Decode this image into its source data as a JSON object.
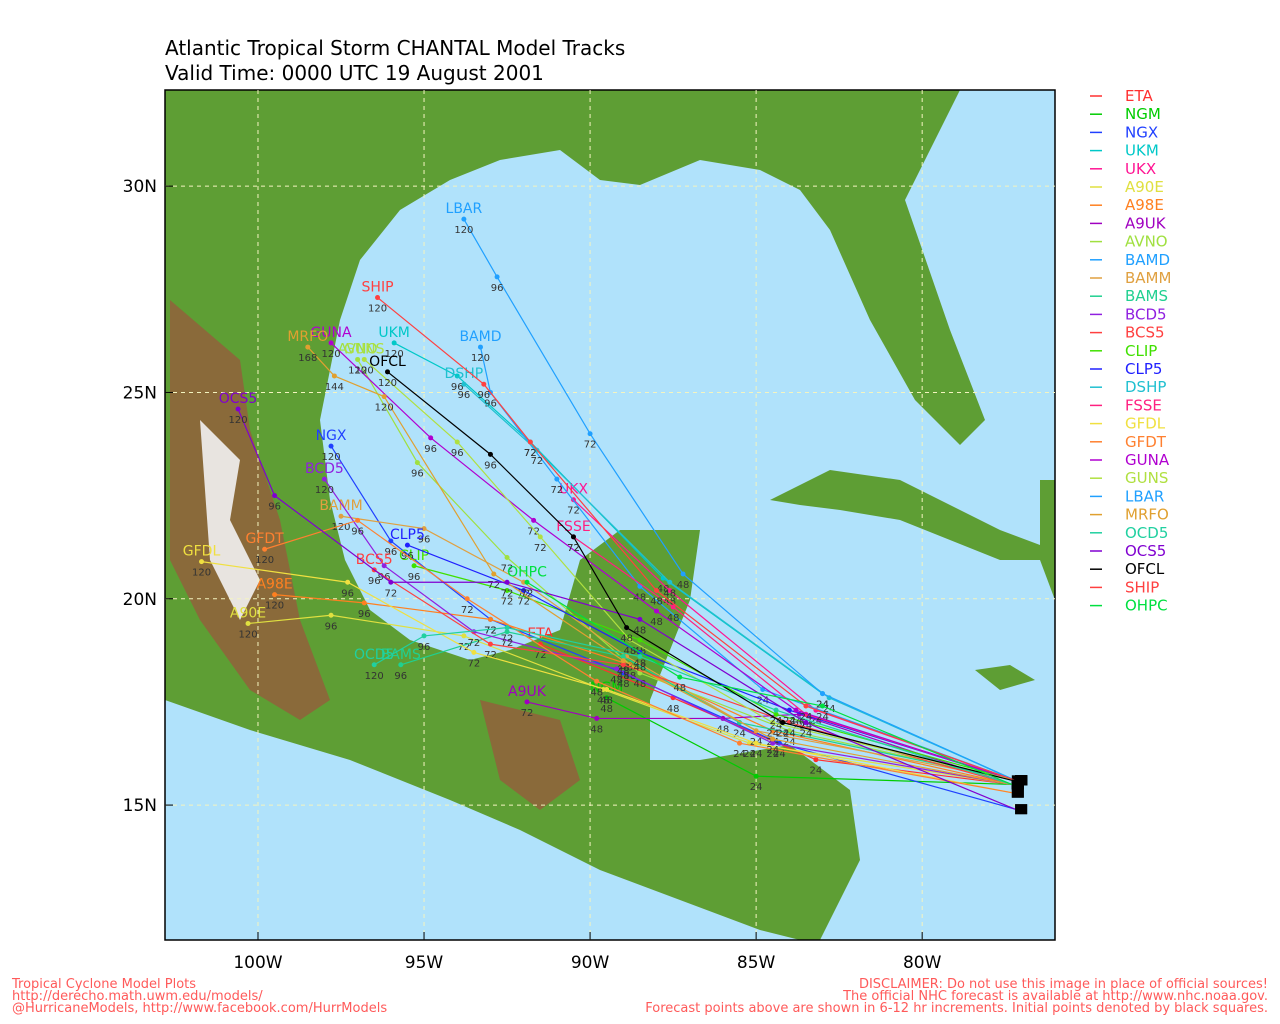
{
  "chart_data": {
    "type": "track",
    "title": "Atlantic Tropical Storm CHANTAL Model Tracks",
    "subtitle": "Valid Time: 0000 UTC 19 August 2001",
    "xlim": [
      -102.8,
      -76.0
    ],
    "ylim": [
      11.73,
      32.33
    ],
    "xticks": [
      {
        "value": -100,
        "label": "100W"
      },
      {
        "value": -95,
        "label": "95W"
      },
      {
        "value": -90,
        "label": "90W"
      },
      {
        "value": -85,
        "label": "85W"
      },
      {
        "value": -80,
        "label": "80W"
      }
    ],
    "yticks": [
      {
        "value": 15,
        "label": "15N"
      },
      {
        "value": 20,
        "label": "20N"
      },
      {
        "value": 25,
        "label": "25N"
      },
      {
        "value": 30,
        "label": "30N"
      }
    ],
    "grid": true,
    "series": [
      {
        "name": "ETA",
        "color": "#ff3030",
        "start_lon": -77.3,
        "start_lat": 15.5,
        "lon": [
          -83.2,
          -87.5,
          -91.5
        ],
        "lat": [
          16.1,
          17.6,
          18.9
        ],
        "hours": [
          24,
          48,
          72
        ]
      },
      {
        "name": "NGM",
        "color": "#00cc00",
        "start_lon": -77.3,
        "start_lat": 15.5,
        "lon": [
          -85.0,
          -89.5
        ],
        "lat": [
          15.7,
          17.6
        ],
        "hours": [
          24,
          48
        ]
      },
      {
        "name": "NGX",
        "color": "#2040ff",
        "start_lon": -77.2,
        "start_lat": 14.9,
        "lon": [
          -84.3,
          -89.0,
          -93.0,
          -96.0,
          -97.8
        ],
        "lat": [
          16.5,
          18.2,
          19.5,
          21.4,
          23.7
        ],
        "hours": [
          24,
          48,
          72,
          96,
          120
        ]
      },
      {
        "name": "UKM",
        "color": "#00c8c8",
        "start_lon": -77.2,
        "start_lat": 15.6,
        "lon": [
          -83.0,
          -87.8,
          -91.8,
          -94.0,
          -95.9
        ],
        "lat": [
          17.7,
          20.5,
          23.8,
          25.4,
          26.2
        ],
        "hours": [
          24,
          48,
          72,
          96,
          120
        ]
      },
      {
        "name": "UKX",
        "color": "#ff1493",
        "start_lon": -77.2,
        "start_lat": 15.6,
        "lon": [
          -83.2,
          -87.6,
          -90.5
        ],
        "lat": [
          17.3,
          20.2,
          22.4
        ],
        "hours": [
          24,
          48,
          72
        ]
      },
      {
        "name": "A90E",
        "color": "#e0e040",
        "start_lon": -77.3,
        "start_lat": 15.5,
        "lon": [
          -85.2,
          -89.6,
          -93.8,
          -97.8,
          -100.3
        ],
        "lat": [
          16.5,
          17.8,
          19.1,
          19.6,
          19.4
        ],
        "hours": [
          24,
          48,
          72,
          96,
          120
        ]
      },
      {
        "name": "A98E",
        "color": "#ff8020",
        "start_lon": -77.3,
        "start_lat": 15.5,
        "lon": [
          -84.5,
          -88.8,
          -93.0,
          -96.8,
          -99.5
        ],
        "lat": [
          16.8,
          18.4,
          19.5,
          19.9,
          20.1
        ],
        "hours": [
          24,
          48,
          72,
          96,
          120
        ]
      },
      {
        "name": "A9UK",
        "color": "#a000c0",
        "start_lon": -77.3,
        "start_lat": 15.5,
        "lon": [
          -83.7,
          -86.0,
          -89.8,
          -91.9
        ],
        "lat": [
          17.2,
          17.1,
          17.1,
          17.5
        ],
        "hours": [
          24,
          48,
          48,
          72
        ]
      },
      {
        "name": "AVNO",
        "color": "#a0e040",
        "start_lon": -77.2,
        "start_lat": 15.6,
        "lon": [
          -84.0,
          -88.5,
          -92.5,
          -95.2,
          -97.0
        ],
        "lat": [
          16.8,
          18.2,
          21.0,
          23.3,
          25.8
        ],
        "hours": [
          24,
          48,
          72,
          96,
          120
        ]
      },
      {
        "name": "BAMD",
        "color": "#20a0ff",
        "start_lon": -77.2,
        "start_lat": 15.6,
        "lon": [
          -84.8,
          -88.5,
          -91.0,
          -93.0,
          -93.3
        ],
        "lat": [
          17.8,
          20.3,
          22.9,
          25.0,
          26.1
        ],
        "hours": [
          24,
          48,
          72,
          96,
          120
        ]
      },
      {
        "name": "BAMM",
        "color": "#e0a040",
        "start_lon": -77.2,
        "start_lat": 15.6,
        "lon": [
          -85.0,
          -88.9,
          -92.0,
          -95.0,
          -97.5
        ],
        "lat": [
          16.8,
          18.6,
          20.4,
          21.7,
          22.0
        ],
        "hours": [
          24,
          48,
          72,
          96,
          120
        ]
      },
      {
        "name": "BAMS",
        "color": "#20d090",
        "start_lon": -77.2,
        "start_lat": 15.6,
        "lon": [
          -85.5,
          -89.0,
          -92.5,
          -95.7
        ],
        "lat": [
          17.0,
          18.6,
          19.2,
          18.4
        ],
        "hours": [
          24,
          48,
          72,
          96
        ]
      },
      {
        "name": "BCD5",
        "color": "#9020e0",
        "start_lon": -77.3,
        "start_lat": 15.5,
        "lon": [
          -84.5,
          -89.2,
          -93.5,
          -96.2,
          -98.0
        ],
        "lat": [
          16.5,
          18.3,
          19.2,
          20.8,
          22.9
        ],
        "hours": [
          24,
          48,
          72,
          96,
          120
        ]
      },
      {
        "name": "BCS5",
        "color": "#ff4040",
        "start_lon": -77.3,
        "start_lat": 15.5,
        "lon": [
          -84.0,
          -89.0,
          -93.0,
          -96.5
        ],
        "lat": [
          17.0,
          18.4,
          18.9,
          20.7
        ],
        "hours": [
          24,
          48,
          72,
          96
        ]
      },
      {
        "name": "CLIP",
        "color": "#40e000",
        "start_lon": -77.2,
        "start_lat": 15.6,
        "lon": [
          -84.4,
          -88.5,
          -92.5,
          -95.3
        ],
        "lat": [
          17.2,
          19.0,
          20.2,
          20.8
        ],
        "hours": [
          24,
          48,
          72,
          96
        ]
      },
      {
        "name": "CLP5",
        "color": "#2020ff",
        "start_lon": -77.2,
        "start_lat": 15.6,
        "lon": [
          -84.0,
          -88.5,
          -92.0,
          -95.5
        ],
        "lat": [
          17.3,
          18.7,
          20.2,
          21.3
        ],
        "hours": [
          24,
          48,
          72,
          96
        ]
      },
      {
        "name": "DSHP",
        "color": "#20c0d0",
        "start_lon": -77.2,
        "start_lat": 15.6,
        "lon": [
          -82.8,
          -87.6,
          -91.6,
          -93.8
        ],
        "lat": [
          17.6,
          20.4,
          23.6,
          25.2
        ],
        "hours": [
          24,
          48,
          72,
          96
        ]
      },
      {
        "name": "FSSE",
        "color": "#ff2080",
        "start_lon": -77.2,
        "start_lat": 15.6,
        "lon": [
          -83.5,
          -87.5,
          -90.5
        ],
        "lat": [
          17.2,
          19.8,
          21.5
        ],
        "hours": [
          24,
          48,
          72
        ]
      },
      {
        "name": "GFDL",
        "color": "#f0e040",
        "start_lon": -77.3,
        "start_lat": 15.3,
        "lon": [
          -85.0,
          -89.5,
          -93.5,
          -97.3,
          -101.7
        ],
        "lat": [
          16.5,
          17.8,
          18.7,
          20.4,
          20.9
        ],
        "hours": [
          24,
          48,
          72,
          96,
          120
        ]
      },
      {
        "name": "GFDT",
        "color": "#ff8030",
        "start_lon": -77.3,
        "start_lat": 15.3,
        "lon": [
          -85.5,
          -89.8,
          -93.7,
          -97.0,
          -99.8
        ],
        "lat": [
          16.5,
          18.0,
          20.0,
          21.9,
          21.2
        ],
        "hours": [
          24,
          48,
          72,
          96,
          120
        ]
      },
      {
        "name": "GUNA",
        "color": "#b000d0",
        "start_lon": -77.2,
        "start_lat": 15.6,
        "lon": [
          -83.8,
          -88.0,
          -91.7,
          -94.8,
          -97.8
        ],
        "lat": [
          17.3,
          19.7,
          21.9,
          23.9,
          26.2
        ],
        "hours": [
          24,
          48,
          72,
          96,
          120
        ]
      },
      {
        "name": "GUNS",
        "color": "#b0e040",
        "start_lon": -77.2,
        "start_lat": 15.6,
        "lon": [
          -84.5,
          -88.8,
          -91.5,
          -94.0,
          -96.8
        ],
        "lat": [
          17.0,
          19.0,
          21.5,
          23.8,
          25.8
        ],
        "hours": [
          24,
          48,
          72,
          96,
          120
        ]
      },
      {
        "name": "LBAR",
        "color": "#20a0ff",
        "start_lon": -77.2,
        "start_lat": 15.6,
        "lon": [
          -83.0,
          -87.2,
          -90.0,
          -92.8,
          -93.8
        ],
        "lat": [
          17.7,
          20.6,
          24.0,
          27.8,
          29.2
        ],
        "hours": [
          24,
          48,
          72,
          96,
          120
        ]
      },
      {
        "name": "MRFO",
        "color": "#e0a030",
        "start_lon": -77.3,
        "start_lat": 15.5,
        "lon": [
          -84.5,
          -89.0,
          -92.9,
          -96.2,
          -97.7,
          -98.5
        ],
        "lat": [
          16.6,
          18.5,
          20.6,
          24.9,
          25.4,
          26.1
        ],
        "hours": [
          24,
          48,
          72,
          120,
          144,
          168
        ]
      },
      {
        "name": "OCD5",
        "color": "#20d0a0",
        "start_lon": -77.3,
        "start_lat": 15.5,
        "lon": [
          -84.4,
          -88.5,
          -92.5,
          -95.0,
          -96.5
        ],
        "lat": [
          17.3,
          18.6,
          19.3,
          19.1,
          18.4
        ],
        "hours": [
          24,
          48,
          72,
          96,
          120
        ]
      },
      {
        "name": "OCS5",
        "color": "#8000d0",
        "start_lon": -77.2,
        "start_lat": 14.9,
        "lon": [
          -83.5,
          -88.5,
          -92.5,
          -96.0,
          -99.5,
          -100.6
        ],
        "lat": [
          17.0,
          19.5,
          20.4,
          20.4,
          22.5,
          24.6
        ],
        "hours": [
          24,
          48,
          72,
          72,
          96,
          120
        ]
      },
      {
        "name": "OFCL",
        "color": "#000000",
        "start_lon": -77.3,
        "start_lat": 15.6,
        "lon": [
          -84.2,
          -88.9,
          -90.5,
          -93.0,
          -96.1
        ],
        "lat": [
          17.0,
          19.3,
          21.5,
          23.5,
          25.5
        ],
        "hours": [
          24,
          48,
          72,
          96,
          120
        ]
      },
      {
        "name": "SHIP",
        "color": "#ff4040",
        "start_lon": -77.2,
        "start_lat": 15.6,
        "lon": [
          -83.5,
          -88.0,
          -91.8,
          -93.2,
          -96.4
        ],
        "lat": [
          17.4,
          20.2,
          23.8,
          25.2,
          27.3
        ],
        "hours": [
          24,
          48,
          72,
          96,
          120
        ]
      },
      {
        "name": "OHPC",
        "color": "#00e040",
        "start_lon": -77.3,
        "start_lat": 15.5,
        "lon": [
          -83.0,
          -87.3,
          -91.9
        ],
        "lat": [
          17.4,
          18.1,
          20.4
        ],
        "hours": [
          24,
          48,
          72
        ]
      }
    ],
    "footer": {
      "left": [
        "Tropical Cyclone Model Plots",
        "http://derecho.math.uwm.edu/models/",
        "@HurricaneModels, http://www.facebook.com/HurrModels"
      ],
      "right": [
        "DISCLAIMER: Do not use this image in place of official sources!",
        "The official NHC forecast is available at http://www.nhc.noaa.gov.",
        "Forecast points above are shown in 6-12 hr increments. Initial points denoted by black squares."
      ]
    }
  }
}
